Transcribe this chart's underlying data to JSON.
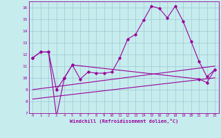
{
  "xlabel": "Windchill (Refroidissement éolien,°C)",
  "xlim": [
    -0.5,
    23.5
  ],
  "ylim": [
    7,
    16.5
  ],
  "yticks": [
    7,
    8,
    9,
    10,
    11,
    12,
    13,
    14,
    15,
    16
  ],
  "xticks": [
    0,
    1,
    2,
    3,
    4,
    5,
    6,
    7,
    8,
    9,
    10,
    11,
    12,
    13,
    14,
    15,
    16,
    17,
    18,
    19,
    20,
    21,
    22,
    23
  ],
  "bg_color": "#c6ecee",
  "grid_color": "#9ec8d0",
  "line_color": "#990099",
  "lines": [
    {
      "x": [
        0,
        1,
        2,
        3,
        4,
        5,
        6,
        7,
        8,
        9,
        10,
        11,
        12,
        13,
        14,
        15,
        16,
        17,
        18,
        19,
        20,
        21,
        22,
        23
      ],
      "y": [
        11.7,
        12.2,
        12.2,
        9.0,
        10.0,
        11.1,
        9.9,
        10.5,
        10.4,
        10.4,
        10.5,
        11.7,
        13.3,
        13.7,
        14.9,
        16.1,
        15.9,
        15.1,
        16.1,
        14.8,
        13.1,
        11.4,
        10.1,
        10.7
      ],
      "marker": "D",
      "markersize": 1.8,
      "linewidth": 0.8
    },
    {
      "x": [
        0,
        1,
        2,
        3,
        4,
        5,
        21,
        22,
        23
      ],
      "y": [
        11.7,
        12.2,
        12.2,
        6.7,
        10.0,
        11.1,
        9.9,
        9.6,
        10.7
      ],
      "marker": "D",
      "markersize": 1.8,
      "linewidth": 0.8
    },
    {
      "x": [
        0,
        23
      ],
      "y": [
        8.2,
        10.0
      ],
      "marker": null,
      "markersize": 0,
      "linewidth": 0.8
    },
    {
      "x": [
        0,
        23
      ],
      "y": [
        9.0,
        11.0
      ],
      "marker": null,
      "markersize": 0,
      "linewidth": 0.8
    }
  ]
}
